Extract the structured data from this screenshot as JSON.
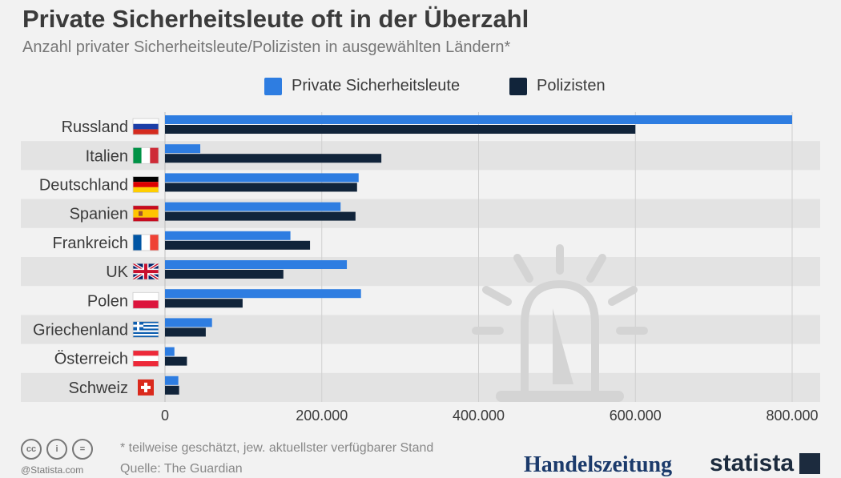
{
  "title": "Private Sicherheitsleute oft in der Überzahl",
  "subtitle": "Anzahl privater Sicherheitsleute/Polizisten in ausgewählten Ländern*",
  "legend": {
    "series1": "Private Sicherheitsleute",
    "series2": "Polizisten"
  },
  "colors": {
    "private": "#2e7de1",
    "police": "#11243a",
    "band": "#e3e3e3",
    "grid": "#cfcfcf",
    "background": "#f2f2f2"
  },
  "footer": {
    "note": "* teilweise geschätzt, jew. aktuellster verfügbarer Stand",
    "source": "Quelle: The Guardian",
    "credit": "@Statista.com",
    "brand_left": "Handelszeitung",
    "brand_right": "statista"
  },
  "chart_data": {
    "type": "bar",
    "orientation": "horizontal",
    "title": "Private Sicherheitsleute oft in der Überzahl",
    "subtitle": "Anzahl privater Sicherheitsleute/Polizisten in ausgewählten Ländern*",
    "categories": [
      "Russland",
      "Italien",
      "Deutschland",
      "Spanien",
      "Frankreich",
      "UK",
      "Polen",
      "Griechenland",
      "Österreich",
      "Schweiz"
    ],
    "flags": [
      "russia-flag-icon",
      "italy-flag-icon",
      "germany-flag-icon",
      "spain-flag-icon",
      "france-flag-icon",
      "uk-flag-icon",
      "poland-flag-icon",
      "greece-flag-icon",
      "austria-flag-icon",
      "switzerland-flag-icon"
    ],
    "series": [
      {
        "name": "Private Sicherheitsleute",
        "values": [
          800000,
          45000,
          247000,
          224000,
          160000,
          232000,
          250000,
          60000,
          12000,
          17000
        ]
      },
      {
        "name": "Polizisten",
        "values": [
          600000,
          276000,
          245000,
          243000,
          185000,
          151000,
          99000,
          52000,
          28000,
          18000
        ]
      }
    ],
    "xlim": [
      0,
      800000
    ],
    "xticks": [
      "0",
      "200.000",
      "400.000",
      "600.000",
      "800.000"
    ],
    "legend_position": "top",
    "grid": true
  }
}
